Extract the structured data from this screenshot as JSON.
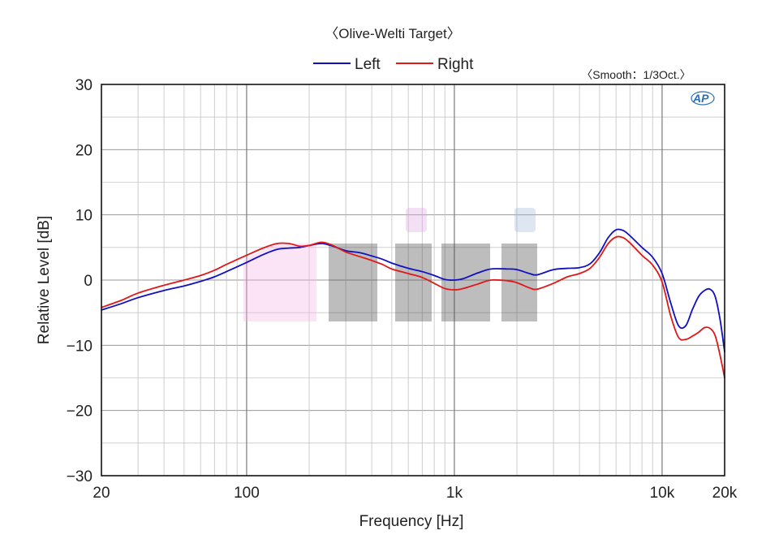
{
  "chart_data": {
    "type": "line",
    "title": "〈Olive-Welti Target〉",
    "subtitle": "〈Smooth：1/3Oct.〉",
    "logo": "AP",
    "xlabel": "Frequency [Hz]",
    "ylabel": "Relative Level [dB]",
    "xscale": "log",
    "xlim": [
      20,
      20000
    ],
    "ylim": [
      -30,
      30
    ],
    "x_ticks": [
      20,
      100,
      1000,
      10000,
      20000
    ],
    "x_tick_labels": [
      "20",
      "100",
      "1k",
      "10k",
      "20k"
    ],
    "y_ticks": [
      30,
      20,
      10,
      0,
      -10,
      -20,
      -30
    ],
    "y_tick_labels": [
      "30",
      "20",
      "10",
      "0",
      "−10",
      "−20",
      "−30"
    ],
    "grid": true,
    "legend_position": "top",
    "series": [
      {
        "name": "Left",
        "color": "#1010c0",
        "points": [
          [
            20,
            -4.6
          ],
          [
            25,
            -3.6
          ],
          [
            30,
            -2.7
          ],
          [
            40,
            -1.6
          ],
          [
            50,
            -0.9
          ],
          [
            60,
            -0.2
          ],
          [
            70,
            0.5
          ],
          [
            80,
            1.3
          ],
          [
            100,
            2.7
          ],
          [
            120,
            3.9
          ],
          [
            140,
            4.7
          ],
          [
            160,
            4.9
          ],
          [
            180,
            5.0
          ],
          [
            200,
            5.3
          ],
          [
            230,
            5.6
          ],
          [
            260,
            5.2
          ],
          [
            300,
            4.5
          ],
          [
            350,
            4.2
          ],
          [
            400,
            3.7
          ],
          [
            450,
            3.2
          ],
          [
            500,
            2.6
          ],
          [
            600,
            1.8
          ],
          [
            700,
            1.3
          ],
          [
            800,
            0.7
          ],
          [
            900,
            0.1
          ],
          [
            1000,
            0.0
          ],
          [
            1100,
            0.2
          ],
          [
            1300,
            1.1
          ],
          [
            1500,
            1.7
          ],
          [
            1800,
            1.7
          ],
          [
            2000,
            1.6
          ],
          [
            2300,
            1.0
          ],
          [
            2500,
            0.8
          ],
          [
            3000,
            1.6
          ],
          [
            3500,
            1.8
          ],
          [
            4000,
            1.9
          ],
          [
            4500,
            2.5
          ],
          [
            5000,
            4.2
          ],
          [
            5500,
            6.5
          ],
          [
            6000,
            7.7
          ],
          [
            6500,
            7.6
          ],
          [
            7000,
            6.8
          ],
          [
            8000,
            5.0
          ],
          [
            9000,
            3.5
          ],
          [
            10000,
            1.0
          ],
          [
            11000,
            -3.5
          ],
          [
            12000,
            -7.0
          ],
          [
            13000,
            -7.0
          ],
          [
            14000,
            -4.5
          ],
          [
            15000,
            -2.5
          ],
          [
            16000,
            -1.6
          ],
          [
            17000,
            -1.4
          ],
          [
            18000,
            -2.5
          ],
          [
            19000,
            -6.0
          ],
          [
            20000,
            -11.0
          ]
        ]
      },
      {
        "name": "Right",
        "color": "#e01818",
        "points": [
          [
            20,
            -4.2
          ],
          [
            25,
            -3.1
          ],
          [
            30,
            -2.0
          ],
          [
            40,
            -0.8
          ],
          [
            50,
            0.0
          ],
          [
            60,
            0.7
          ],
          [
            70,
            1.5
          ],
          [
            80,
            2.4
          ],
          [
            100,
            3.8
          ],
          [
            120,
            4.9
          ],
          [
            140,
            5.6
          ],
          [
            160,
            5.6
          ],
          [
            180,
            5.2
          ],
          [
            200,
            5.3
          ],
          [
            230,
            5.8
          ],
          [
            260,
            5.3
          ],
          [
            300,
            4.3
          ],
          [
            350,
            3.6
          ],
          [
            400,
            3.0
          ],
          [
            450,
            2.4
          ],
          [
            500,
            1.7
          ],
          [
            600,
            1.0
          ],
          [
            700,
            0.4
          ],
          [
            800,
            -0.5
          ],
          [
            900,
            -1.3
          ],
          [
            1000,
            -1.5
          ],
          [
            1100,
            -1.3
          ],
          [
            1300,
            -0.6
          ],
          [
            1500,
            0.0
          ],
          [
            1800,
            -0.1
          ],
          [
            2000,
            -0.4
          ],
          [
            2300,
            -1.2
          ],
          [
            2500,
            -1.4
          ],
          [
            3000,
            -0.5
          ],
          [
            3500,
            0.5
          ],
          [
            4000,
            1.0
          ],
          [
            4500,
            1.8
          ],
          [
            5000,
            3.5
          ],
          [
            5500,
            5.6
          ],
          [
            6000,
            6.6
          ],
          [
            6500,
            6.5
          ],
          [
            7000,
            5.7
          ],
          [
            8000,
            3.8
          ],
          [
            9000,
            2.3
          ],
          [
            10000,
            -0.3
          ],
          [
            11000,
            -5.5
          ],
          [
            12000,
            -8.8
          ],
          [
            13000,
            -9.1
          ],
          [
            14000,
            -8.6
          ],
          [
            15000,
            -8.0
          ],
          [
            16000,
            -7.3
          ],
          [
            17000,
            -7.4
          ],
          [
            18000,
            -8.5
          ],
          [
            19000,
            -11.5
          ],
          [
            20000,
            -15.0
          ]
        ]
      }
    ]
  }
}
